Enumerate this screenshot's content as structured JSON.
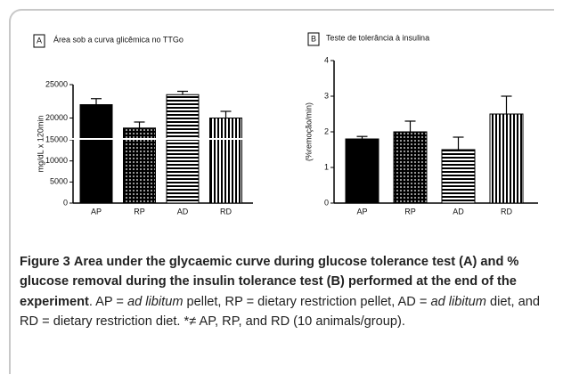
{
  "chart_data": [
    {
      "type": "bar",
      "panel": "A",
      "title": "Área sob a curva glicêmica no TTGo",
      "ylabel": "mg/dL x 120min",
      "categories": [
        "AP",
        "RP",
        "AD",
        "RD"
      ],
      "values": [
        22000,
        18500,
        23500,
        20000
      ],
      "errors": [
        900,
        900,
        500,
        1000
      ],
      "patterns": [
        "solid",
        "dots",
        "hstripes",
        "vstripes"
      ],
      "color": "#000000",
      "ylim": [
        0,
        25000
      ],
      "axis_break": [
        15000,
        17000
      ],
      "yticks": [
        0,
        5000,
        10000,
        15000,
        20000,
        25000
      ]
    },
    {
      "type": "bar",
      "panel": "B",
      "title": "Teste de tolerância à insulina",
      "ylabel": "(%remoção/min)",
      "categories": [
        "AP",
        "RP",
        "AD",
        "RD"
      ],
      "values": [
        1.8,
        2.0,
        1.5,
        2.5
      ],
      "errors": [
        0.07,
        0.3,
        0.35,
        0.5
      ],
      "patterns": [
        "solid",
        "dots",
        "hstripes",
        "vstripes"
      ],
      "color": "#000000",
      "ylim": [
        0,
        4
      ],
      "yticks": [
        0,
        1,
        2,
        3,
        4
      ]
    }
  ],
  "caption": {
    "label": "Figure 3",
    "title": "Area under the glycaemic curve during glucose tolerance test (A) and % glucose removal during the insulin tolerance test (B) performed at the end of the experiment",
    "body": [
      ". AP = ",
      "ad libitum",
      " pellet, RP = dietary restriction pellet, AD = ",
      "ad libitum",
      " diet, and RD = dietary restriction diet. *≠ AP, RP, and RD (10 animals/group)."
    ]
  }
}
